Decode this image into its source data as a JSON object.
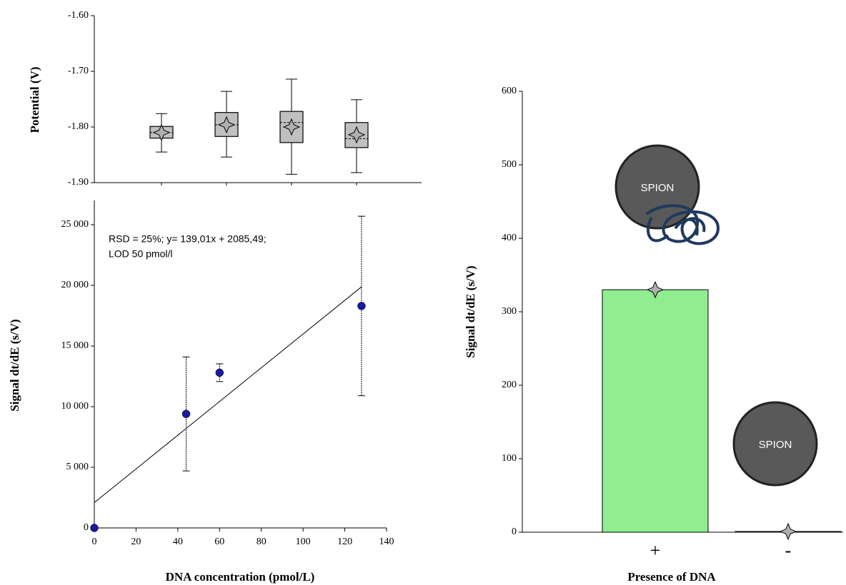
{
  "chart_data": [
    {
      "type": "box",
      "ylabel": "Potential (V)",
      "categories": [
        null,
        null,
        null,
        null
      ],
      "boxes": [
        {
          "min": -1.845,
          "q1": -1.82,
          "median": -1.81,
          "q3": -1.799,
          "max": -1.776,
          "mean": -1.81
        },
        {
          "min": -1.854,
          "q1": -1.817,
          "median": -1.796,
          "q3": -1.774,
          "max": -1.736,
          "mean": -1.796
        },
        {
          "min": -1.885,
          "q1": -1.828,
          "median": -1.792,
          "q3": -1.772,
          "max": -1.714,
          "mean": -1.8
        },
        {
          "min": -1.882,
          "q1": -1.837,
          "median": -1.821,
          "q3": -1.792,
          "max": -1.751,
          "mean": -1.814
        }
      ],
      "color": "#c0c0c0",
      "marker_color": "#b0b0b0",
      "ylim": [
        -1.9,
        -1.6
      ],
      "yticks": [
        {
          "value": -1.6,
          "label": "-1.60"
        },
        {
          "value": -1.7,
          "label": "-1.70"
        },
        {
          "value": -1.8,
          "label": "-1.80"
        },
        {
          "value": -1.9,
          "label": "-1.90"
        }
      ]
    },
    {
      "type": "scatter",
      "xlabel": "DNA concentration (pmol/L)",
      "ylabel": "Signal dt/dE (s/V)",
      "annotation": [
        "RSD = 25%; y= 139,01x + 2085,49;",
        "LOD 50 pmol/l"
      ],
      "x": [
        0,
        44,
        60,
        128
      ],
      "values": [
        0,
        9400,
        12800,
        18300
      ],
      "errors": [
        0,
        4700,
        730,
        7400
      ],
      "color": "#1a1a9c",
      "trendline": {
        "slope": 139.01,
        "intercept": 2085.49,
        "color": "#e0284a"
      },
      "xlim": [
        0,
        140
      ],
      "xticks": [
        0,
        20,
        40,
        60,
        80,
        100,
        120,
        140
      ],
      "ylim": [
        0,
        27000
      ],
      "yticks": [
        0,
        {
          "value": 5000,
          "label": "5 000"
        },
        {
          "value": 10000,
          "label": "10 000"
        },
        {
          "value": 15000,
          "label": "15 000"
        },
        {
          "value": 20000,
          "label": "20 000"
        },
        {
          "value": 25000,
          "label": "25 000"
        }
      ]
    },
    {
      "type": "bar",
      "xlabel": "Presence of DNA",
      "ylabel": "Signal dt/dE (s/V)",
      "categories": [
        "+",
        "-"
      ],
      "values": [
        330,
        1
      ],
      "color": "#90ee90",
      "marker_color": "#b0b0b0",
      "illustration_labels": [
        "SPION",
        "SPION"
      ],
      "ylim": [
        0,
        600
      ],
      "yticks": [
        0,
        100,
        200,
        300,
        400,
        500,
        600
      ]
    }
  ]
}
